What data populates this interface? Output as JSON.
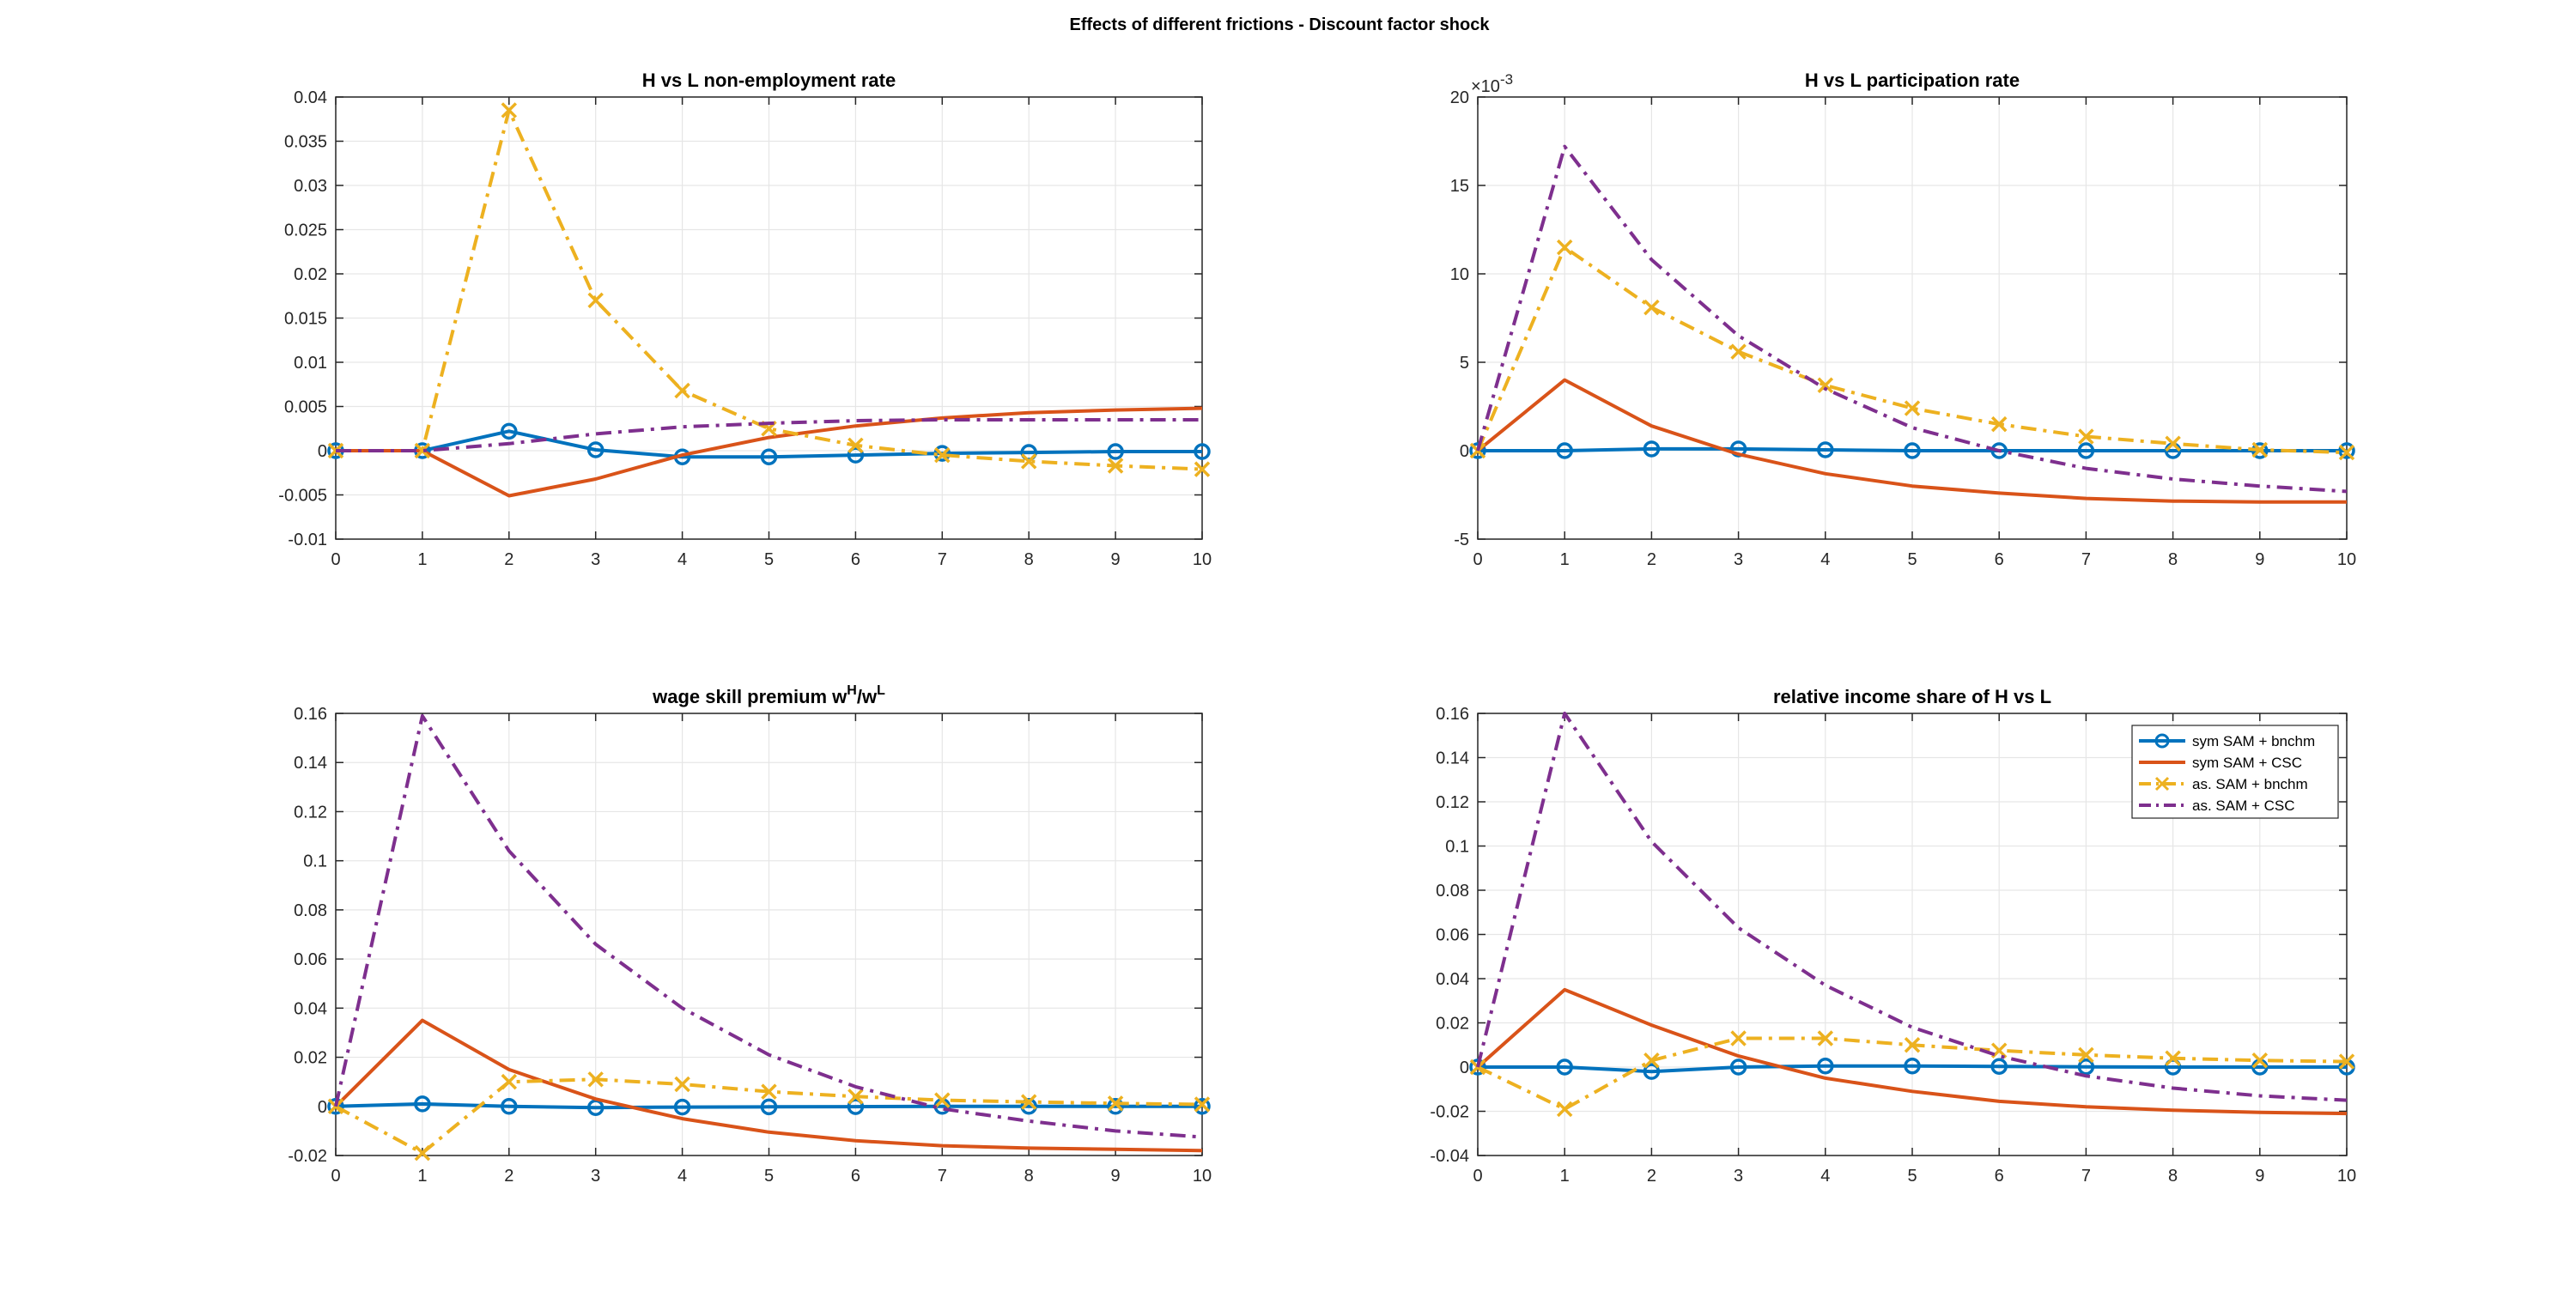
{
  "figure_title": "Effects of different frictions - Discount factor shock",
  "colors": {
    "series_1": "#0072BD",
    "series_2": "#D95319",
    "series_3": "#EDB120",
    "series_4": "#7E2F8E",
    "axis": "#262626",
    "grid": "#e6e6e6",
    "background": "#ffffff"
  },
  "chart_data": [
    {
      "type": "line",
      "title": "H vs L non-employment rate",
      "xlabel": "",
      "ylabel": "",
      "x": [
        0,
        1,
        2,
        3,
        4,
        5,
        6,
        7,
        8,
        9,
        10
      ],
      "xlim": [
        0,
        10
      ],
      "ylim": [
        -0.01,
        0.04
      ],
      "xticks": [
        "0",
        "1",
        "2",
        "3",
        "4",
        "5",
        "6",
        "7",
        "8",
        "9",
        "10"
      ],
      "yticks": [
        -0.01,
        -0.005,
        0,
        0.005,
        0.01,
        0.015,
        0.02,
        0.025,
        0.03,
        0.035,
        0.04
      ],
      "ytick_labels": [
        "-0.01",
        "-0.005",
        "0",
        "0.005",
        "0.01",
        "0.015",
        "0.02",
        "0.025",
        "0.03",
        "0.035",
        "0.04"
      ],
      "exponent_label": "",
      "grid": true,
      "series": [
        {
          "values": [
            0,
            0,
            0.0022,
            0.0001,
            -0.0007,
            -0.0007,
            -0.0005,
            -0.0003,
            -0.0002,
            -0.0001,
            -0.0001
          ],
          "color": "#0072BD",
          "dash": "solid",
          "marker": "circle"
        },
        {
          "values": [
            0,
            0,
            -0.0051,
            -0.0032,
            -0.0005,
            0.0015,
            0.0028,
            0.0037,
            0.0043,
            0.0046,
            0.0048
          ],
          "color": "#D95319",
          "dash": "solid",
          "marker": "none"
        },
        {
          "values": [
            0,
            0,
            0.0385,
            0.017,
            0.0068,
            0.0025,
            0.0006,
            -0.0005,
            -0.0012,
            -0.0017,
            -0.0021
          ],
          "color": "#EDB120",
          "dash": "dashdot",
          "marker": "x"
        },
        {
          "values": [
            0,
            0,
            0.0008,
            0.0019,
            0.0027,
            0.0031,
            0.0034,
            0.0035,
            0.0035,
            0.0035,
            0.0035
          ],
          "color": "#7E2F8E",
          "dash": "dashdot",
          "marker": "none"
        }
      ]
    },
    {
      "type": "line",
      "title": "H vs L participation rate",
      "xlabel": "",
      "ylabel": "",
      "x": [
        0,
        1,
        2,
        3,
        4,
        5,
        6,
        7,
        8,
        9,
        10
      ],
      "xlim": [
        0,
        10
      ],
      "ylim": [
        -5,
        20
      ],
      "xticks": [
        "0",
        "1",
        "2",
        "3",
        "4",
        "5",
        "6",
        "7",
        "8",
        "9",
        "10"
      ],
      "yticks": [
        -5,
        0,
        5,
        10,
        15,
        20
      ],
      "ytick_labels": [
        "-5",
        "0",
        "5",
        "10",
        "15",
        "20"
      ],
      "exponent_label": "-3",
      "grid": true,
      "series": [
        {
          "values": [
            0,
            0,
            0.1,
            0.1,
            0.05,
            0,
            0,
            0,
            0,
            0,
            0
          ],
          "color": "#0072BD",
          "dash": "solid",
          "marker": "circle"
        },
        {
          "values": [
            0,
            4,
            1.4,
            -0.2,
            -1.3,
            -2.0,
            -2.4,
            -2.7,
            -2.85,
            -2.9,
            -2.9
          ],
          "color": "#D95319",
          "dash": "solid",
          "marker": "none"
        },
        {
          "values": [
            0,
            11.5,
            8.1,
            5.6,
            3.7,
            2.4,
            1.5,
            0.8,
            0.4,
            0.05,
            -0.1
          ],
          "color": "#EDB120",
          "dash": "dashdot",
          "marker": "x"
        },
        {
          "values": [
            0,
            17.2,
            10.8,
            6.5,
            3.5,
            1.3,
            0,
            -1.0,
            -1.6,
            -2.0,
            -2.3
          ],
          "color": "#7E2F8E",
          "dash": "dashdot",
          "marker": "none"
        }
      ]
    },
    {
      "type": "line",
      "title_main": "wage skill premium w",
      "title_sup1": "H",
      "title_mid": "/w",
      "title_sup2": "L",
      "xlabel": "",
      "ylabel": "",
      "x": [
        0,
        1,
        2,
        3,
        4,
        5,
        6,
        7,
        8,
        9,
        10
      ],
      "xlim": [
        0,
        10
      ],
      "ylim": [
        -0.02,
        0.16
      ],
      "xticks": [
        "0",
        "1",
        "2",
        "3",
        "4",
        "5",
        "6",
        "7",
        "8",
        "9",
        "10"
      ],
      "yticks": [
        -0.02,
        0,
        0.02,
        0.04,
        0.06,
        0.08,
        0.1,
        0.12,
        0.14,
        0.16
      ],
      "ytick_labels": [
        "-0.02",
        "0",
        "0.02",
        "0.04",
        "0.06",
        "0.08",
        "0.1",
        "0.12",
        "0.14",
        "0.16"
      ],
      "exponent_label": "",
      "grid": true,
      "series": [
        {
          "values": [
            0,
            0.001,
            0,
            -0.0005,
            -0.0003,
            -0.0002,
            -0.0001,
            0,
            0,
            0,
            0
          ],
          "color": "#0072BD",
          "dash": "solid",
          "marker": "circle"
        },
        {
          "values": [
            0,
            0.035,
            0.015,
            0.003,
            -0.005,
            -0.0105,
            -0.014,
            -0.016,
            -0.017,
            -0.0175,
            -0.018
          ],
          "color": "#D95319",
          "dash": "solid",
          "marker": "none"
        },
        {
          "values": [
            0,
            -0.019,
            0.01,
            0.011,
            0.009,
            0.006,
            0.004,
            0.0025,
            0.0018,
            0.0012,
            0.0008
          ],
          "color": "#EDB120",
          "dash": "dashdot",
          "marker": "x"
        },
        {
          "values": [
            0,
            0.159,
            0.104,
            0.066,
            0.04,
            0.021,
            0.008,
            -0.001,
            -0.006,
            -0.01,
            -0.0125
          ],
          "color": "#7E2F8E",
          "dash": "dashdot",
          "marker": "none"
        }
      ]
    },
    {
      "type": "line",
      "title": "relative income share of H vs L",
      "xlabel": "",
      "ylabel": "",
      "x": [
        0,
        1,
        2,
        3,
        4,
        5,
        6,
        7,
        8,
        9,
        10
      ],
      "xlim": [
        0,
        10
      ],
      "ylim": [
        -0.04,
        0.16
      ],
      "xticks": [
        "0",
        "1",
        "2",
        "3",
        "4",
        "5",
        "6",
        "7",
        "8",
        "9",
        "10"
      ],
      "yticks": [
        -0.04,
        -0.02,
        0,
        0.02,
        0.04,
        0.06,
        0.08,
        0.1,
        0.12,
        0.14,
        0.16
      ],
      "ytick_labels": [
        "-0.04",
        "-0.02",
        "0",
        "0.02",
        "0.04",
        "0.06",
        "0.08",
        "0.1",
        "0.12",
        "0.14",
        "0.16"
      ],
      "exponent_label": "",
      "grid": true,
      "legend": {
        "placement": "top-right",
        "entries": [
          "sym SAM + bnchm",
          "sym SAM + CSC",
          "as. SAM + bnchm",
          "as. SAM + CSC"
        ]
      },
      "series": [
        {
          "values": [
            0,
            0,
            -0.002,
            0,
            0.0005,
            0.0005,
            0.0003,
            0.0001,
            0,
            0,
            0
          ],
          "color": "#0072BD",
          "dash": "solid",
          "marker": "circle"
        },
        {
          "values": [
            0,
            0.035,
            0.019,
            0.005,
            -0.005,
            -0.011,
            -0.0155,
            -0.018,
            -0.0195,
            -0.0205,
            -0.021
          ],
          "color": "#D95319",
          "dash": "solid",
          "marker": "none"
        },
        {
          "values": [
            0,
            -0.019,
            0.003,
            0.013,
            0.013,
            0.01,
            0.0075,
            0.0055,
            0.004,
            0.003,
            0.0025
          ],
          "color": "#EDB120",
          "dash": "dashdot",
          "marker": "x"
        },
        {
          "values": [
            0,
            0.16,
            0.102,
            0.063,
            0.037,
            0.018,
            0.005,
            -0.004,
            -0.0095,
            -0.013,
            -0.015
          ],
          "color": "#7E2F8E",
          "dash": "dashdot",
          "marker": "none"
        }
      ]
    }
  ]
}
